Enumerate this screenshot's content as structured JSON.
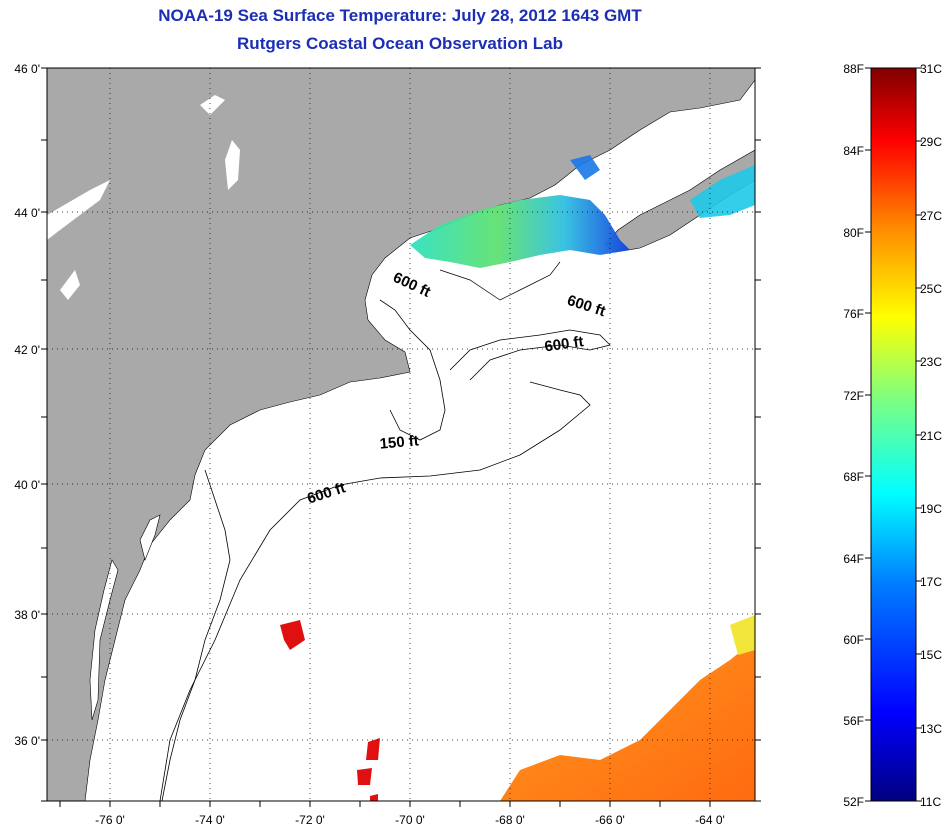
{
  "title": {
    "line1": "NOAA-19 Sea Surface Temperature:  July 28, 2012 1643 GMT",
    "line2": "Rutgers Coastal Ocean Observation Lab"
  },
  "map": {
    "lon_range": [
      -77,
      -63
    ],
    "lat_range": [
      35,
      46
    ],
    "lon_ticks": [
      "-76 0'",
      "-74 0'",
      "-72 0'",
      "-70 0'",
      "-68 0'",
      "-66 0'",
      "-64 0'"
    ],
    "lat_ticks": [
      "46 0'",
      "44 0'",
      "42 0'",
      "40 0'",
      "38 0'",
      "36 0'"
    ],
    "grid": "dotted",
    "land_color": "#a9a9a9",
    "contour_labels": [
      "600 ft",
      "600 ft",
      "600 ft",
      "150 ft",
      "600 ft"
    ]
  },
  "colorbar": {
    "fahrenheit_labels": [
      "88F",
      "84F",
      "80F",
      "76F",
      "72F",
      "68F",
      "64F",
      "60F",
      "56F",
      "52F"
    ],
    "celsius_labels": [
      "31C",
      "29C",
      "27C",
      "25C",
      "23C",
      "21C",
      "19C",
      "17C",
      "15C",
      "13C",
      "11C"
    ],
    "colors": [
      "#7f0000",
      "#ff0000",
      "#ff8c00",
      "#ffff00",
      "#7fff7f",
      "#00ffff",
      "#0080ff",
      "#0000ff",
      "#00007f"
    ]
  }
}
